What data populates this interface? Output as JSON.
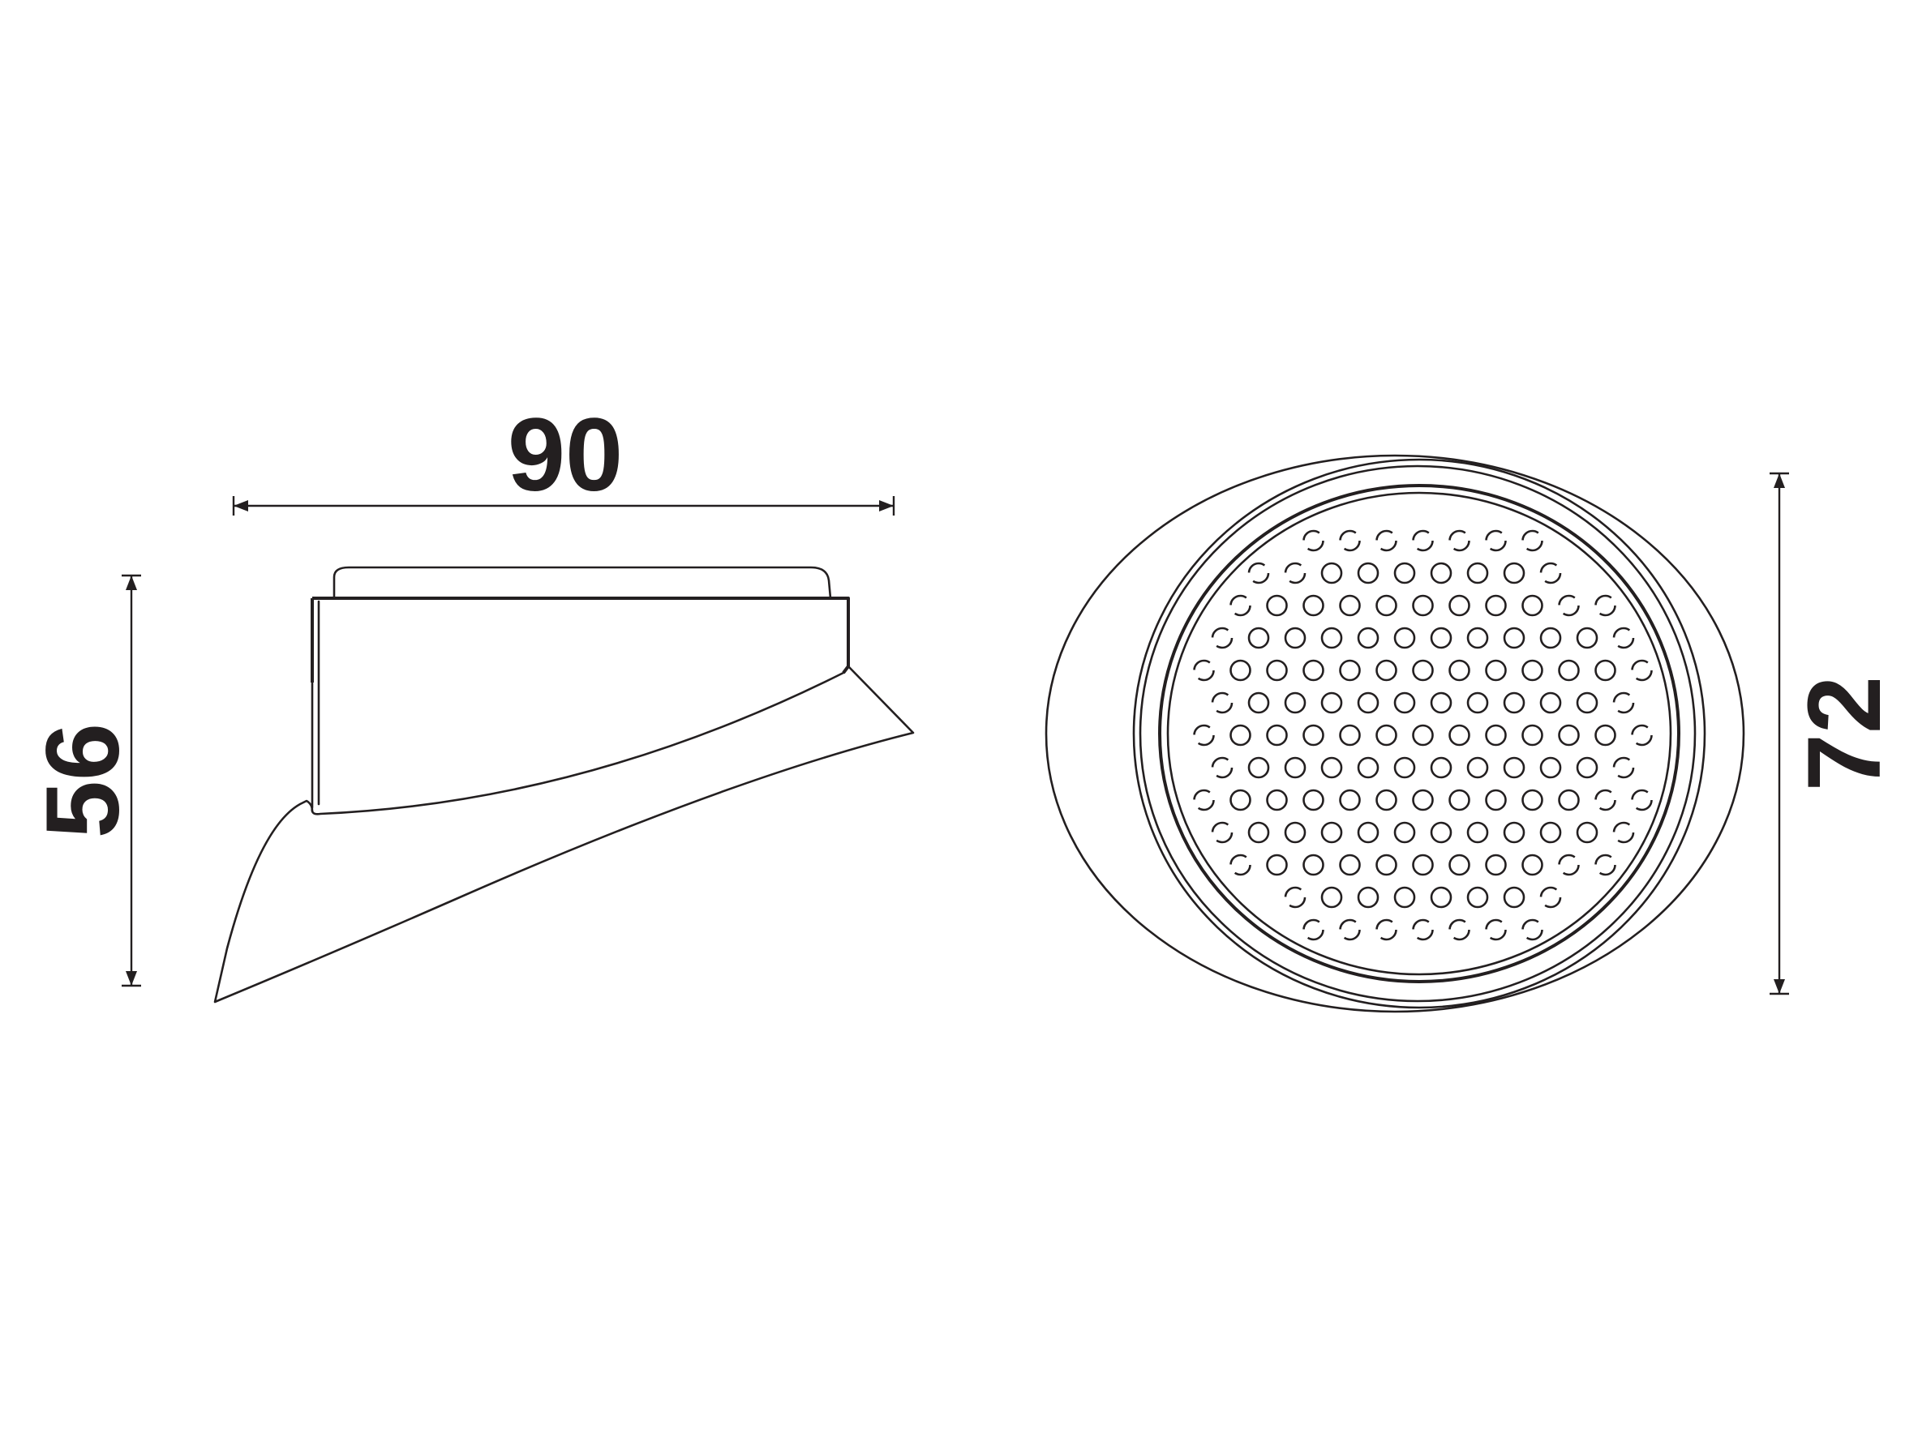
{
  "dimensions": {
    "width": "90",
    "height": "56",
    "diameter": "72"
  },
  "colors": {
    "stroke": "#231f20",
    "background": "#ffffff"
  }
}
